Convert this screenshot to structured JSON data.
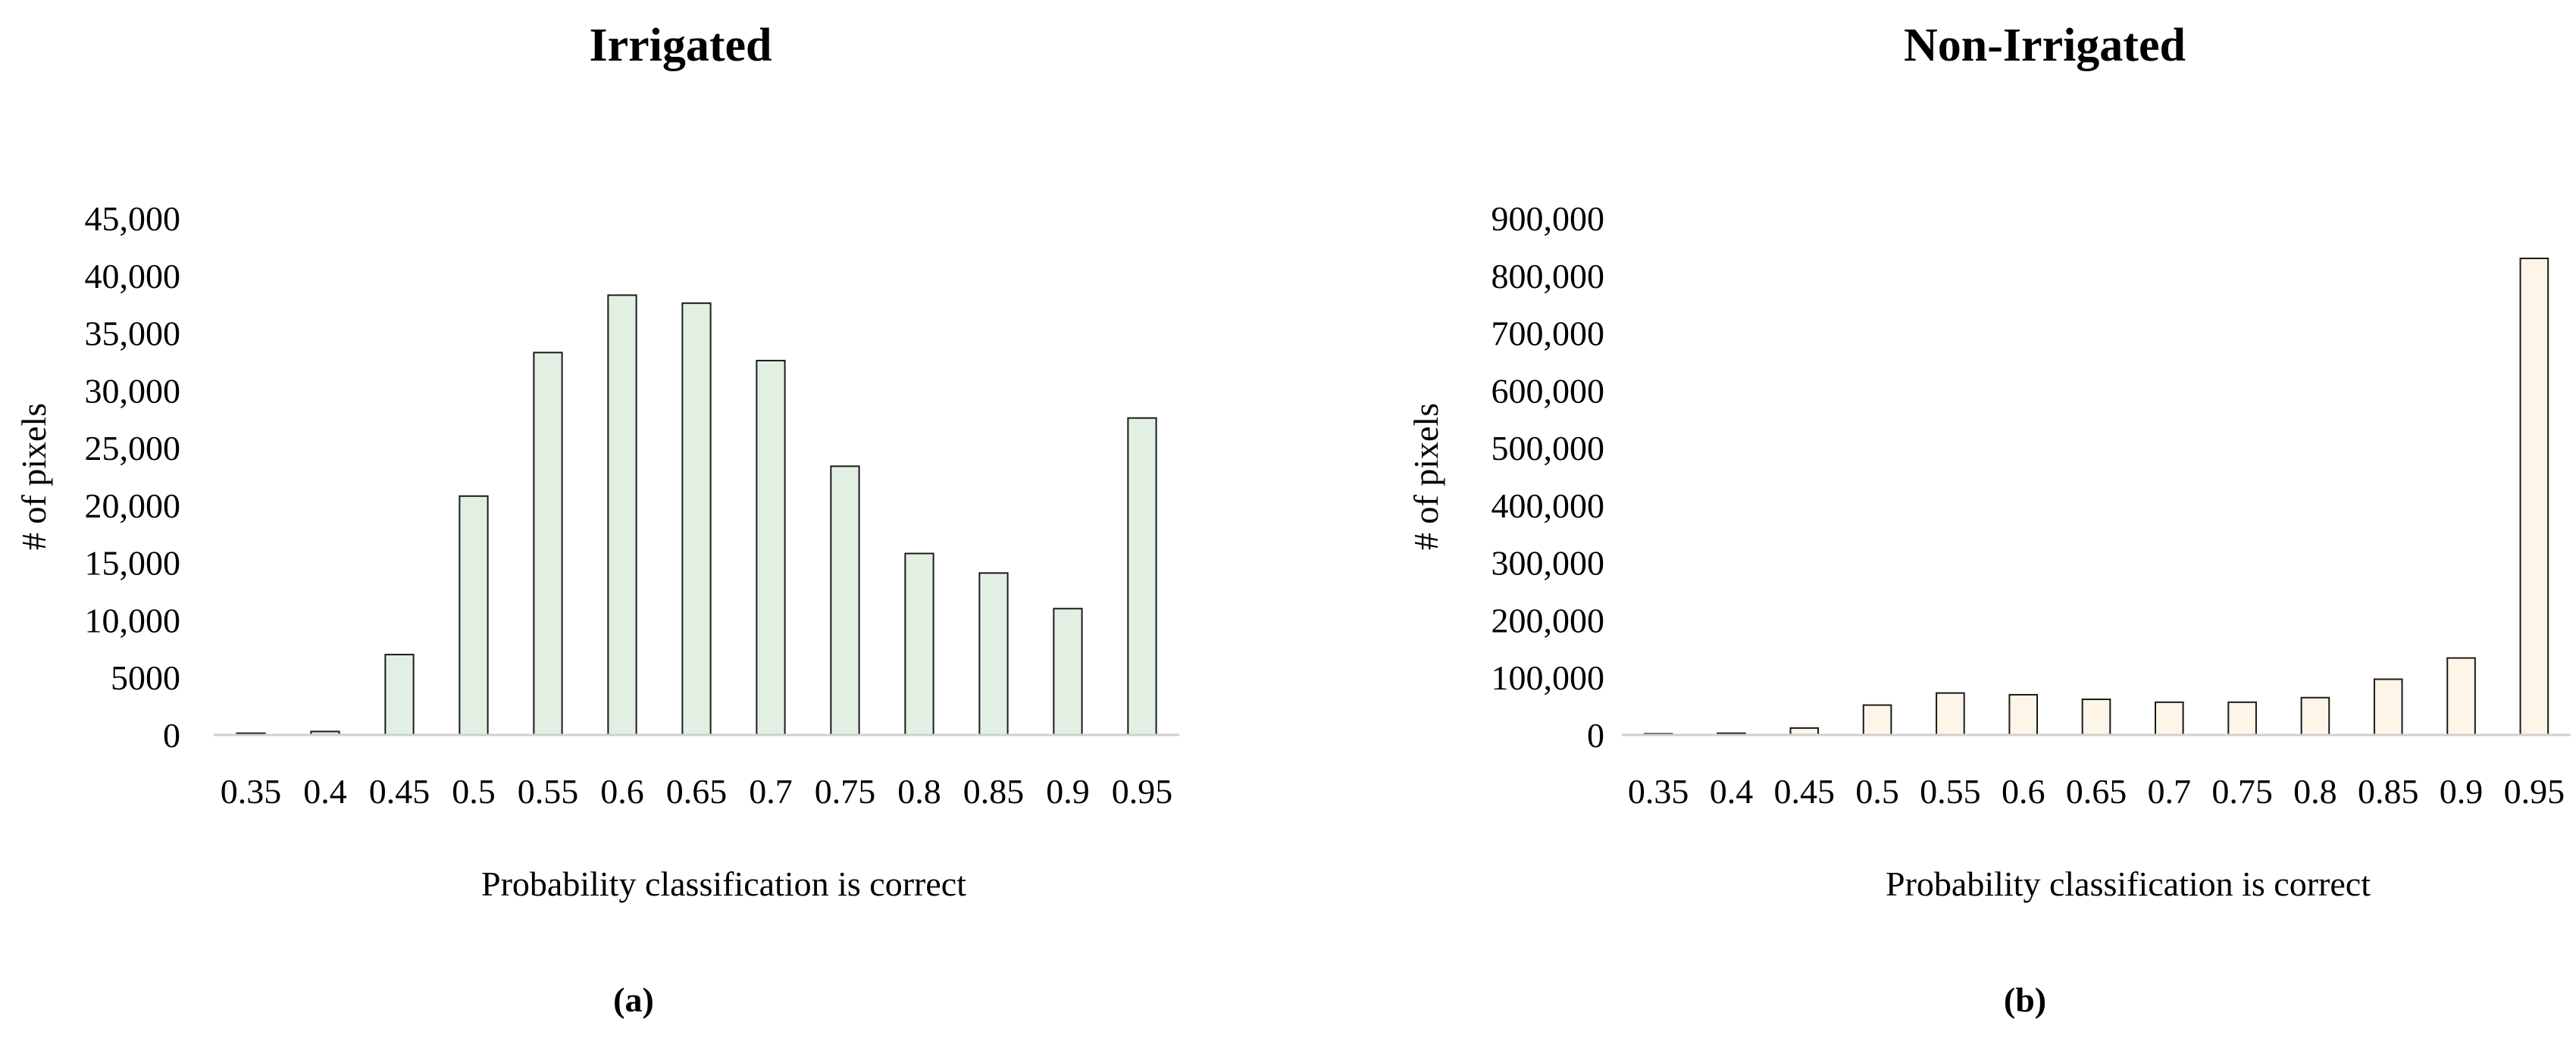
{
  "chart_data": [
    {
      "type": "bar",
      "title": "Irrigated",
      "panel_label": "(a)",
      "xlabel": "Probability classification is correct",
      "ylabel": "# of pixels",
      "ylim": [
        0,
        45000
      ],
      "yticks": [
        0,
        5000,
        10000,
        15000,
        20000,
        25000,
        30000,
        35000,
        40000,
        45000
      ],
      "ytick_labels": [
        "0",
        "5000",
        "10,000",
        "15,000",
        "20,000",
        "25,000",
        "30,000",
        "35,000",
        "40,000",
        "45,000"
      ],
      "categories": [
        "0.35",
        "0.4",
        "0.45",
        "0.5",
        "0.55",
        "0.6",
        "0.65",
        "0.7",
        "0.75",
        "0.8",
        "0.85",
        "0.9",
        "0.95"
      ],
      "values": [
        150,
        300,
        7000,
        20800,
        33300,
        38300,
        37600,
        32600,
        23400,
        15800,
        14100,
        11000,
        27600
      ],
      "bar_color": "#e2f0e4",
      "grid": false,
      "legend": "none"
    },
    {
      "type": "bar",
      "title": "Non-Irrigated",
      "panel_label": "(b)",
      "xlabel": "Probability classification is correct",
      "ylabel": "# of pixels",
      "ylim": [
        0,
        900000
      ],
      "yticks": [
        0,
        100000,
        200000,
        300000,
        400000,
        500000,
        600000,
        700000,
        800000,
        900000
      ],
      "ytick_labels": [
        "0",
        "100,000",
        "200,000",
        "300,000",
        "400,000",
        "500,000",
        "600,000",
        "700,000",
        "800,000",
        "900,000"
      ],
      "categories": [
        "0.35",
        "0.4",
        "0.45",
        "0.5",
        "0.55",
        "0.6",
        "0.65",
        "0.7",
        "0.75",
        "0.8",
        "0.85",
        "0.9",
        "0.95"
      ],
      "values": [
        2000,
        3000,
        12000,
        52000,
        73000,
        70000,
        62000,
        57000,
        57000,
        65000,
        97000,
        134000,
        830000
      ],
      "bar_color": "#fdf6e8",
      "grid": false,
      "legend": "none"
    }
  ]
}
